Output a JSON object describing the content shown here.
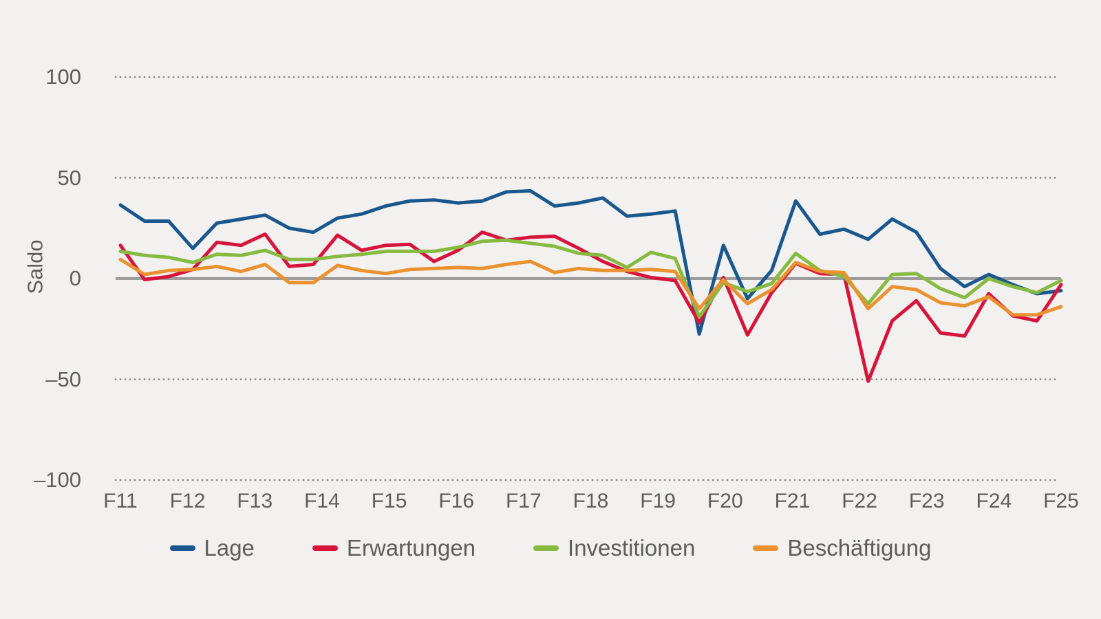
{
  "chart_data": {
    "type": "line",
    "title": "",
    "ylabel": "Saldo",
    "xlabel": "",
    "ylim": [
      -100,
      100
    ],
    "yticks": [
      {
        "value": 100,
        "label": "100"
      },
      {
        "value": 50,
        "label": "50"
      },
      {
        "value": 0,
        "label": "0"
      },
      {
        "value": -50,
        "label": "–50"
      },
      {
        "value": -100,
        "label": "–100"
      }
    ],
    "x_labels": [
      "F11",
      "F12",
      "F13",
      "F14",
      "F15",
      "F16",
      "F17",
      "F18",
      "F19",
      "F20",
      "F21",
      "F22",
      "F23",
      "F24",
      "F25"
    ],
    "grid": "dotted horizontal lines at 100, 50, -50, -100; solid grey line at 0",
    "legend_position": "bottom",
    "zero_line_color": "#9c9c9c",
    "grid_dot_color": "#8f8d8c",
    "background_color": "#f2f1ef",
    "text_color": "#5d5d5c",
    "series": [
      {
        "name": "Lage",
        "color": "#1a578c",
        "values": [
          36.5,
          28.5,
          28.5,
          15,
          27.5,
          29.5,
          31.5,
          25,
          23,
          30,
          32,
          36,
          38.5,
          39,
          37.5,
          38.5,
          43,
          43.5,
          36,
          37.5,
          40,
          31,
          32,
          33.5,
          -27.5,
          16.5,
          -10,
          4,
          38.5,
          22,
          24.5,
          19.5,
          29.5,
          23,
          5,
          -4,
          2,
          -3,
          -7.5,
          -6
        ]
      },
      {
        "name": "Erwartungen",
        "color": "#d6143c",
        "values": [
          16.5,
          -0.5,
          1,
          4.5,
          18,
          16.5,
          22,
          6,
          7,
          21.5,
          14,
          16.5,
          17,
          8.5,
          14,
          23,
          19,
          20.5,
          21,
          15,
          8.5,
          3.5,
          0.5,
          -1,
          -22,
          0.5,
          -28,
          -7,
          7.5,
          2.5,
          2,
          -51,
          -21,
          -11,
          -27,
          -28.5,
          -7.5,
          -18.5,
          -21,
          -3
        ]
      },
      {
        "name": "Investitionen",
        "color": "#86ba41",
        "values": [
          13.5,
          11.5,
          10.5,
          8,
          12,
          11.5,
          14,
          9.5,
          9.5,
          11,
          12,
          13.5,
          13.5,
          13.5,
          15.5,
          18.5,
          19,
          17.5,
          16,
          12.5,
          11.5,
          5.5,
          13,
          10,
          -19,
          -2,
          -6.5,
          -2.5,
          12.5,
          4,
          1,
          -12.5,
          2,
          2.5,
          -5,
          -9.5,
          0,
          -4,
          -7,
          -1
        ]
      },
      {
        "name": "Beschäftigung",
        "color": "#e9922f",
        "values": [
          9.5,
          2,
          4,
          4.5,
          6,
          3.5,
          7,
          -2,
          -2,
          6.5,
          4,
          2.5,
          4.5,
          5,
          5.5,
          5,
          7,
          8.5,
          3,
          5,
          4,
          4,
          4.5,
          3.5,
          -15,
          -0.5,
          -12.5,
          -5.5,
          8,
          3.5,
          3,
          -15,
          -4,
          -5.5,
          -12,
          -13.5,
          -9,
          -18,
          -18,
          -14
        ]
      }
    ]
  }
}
